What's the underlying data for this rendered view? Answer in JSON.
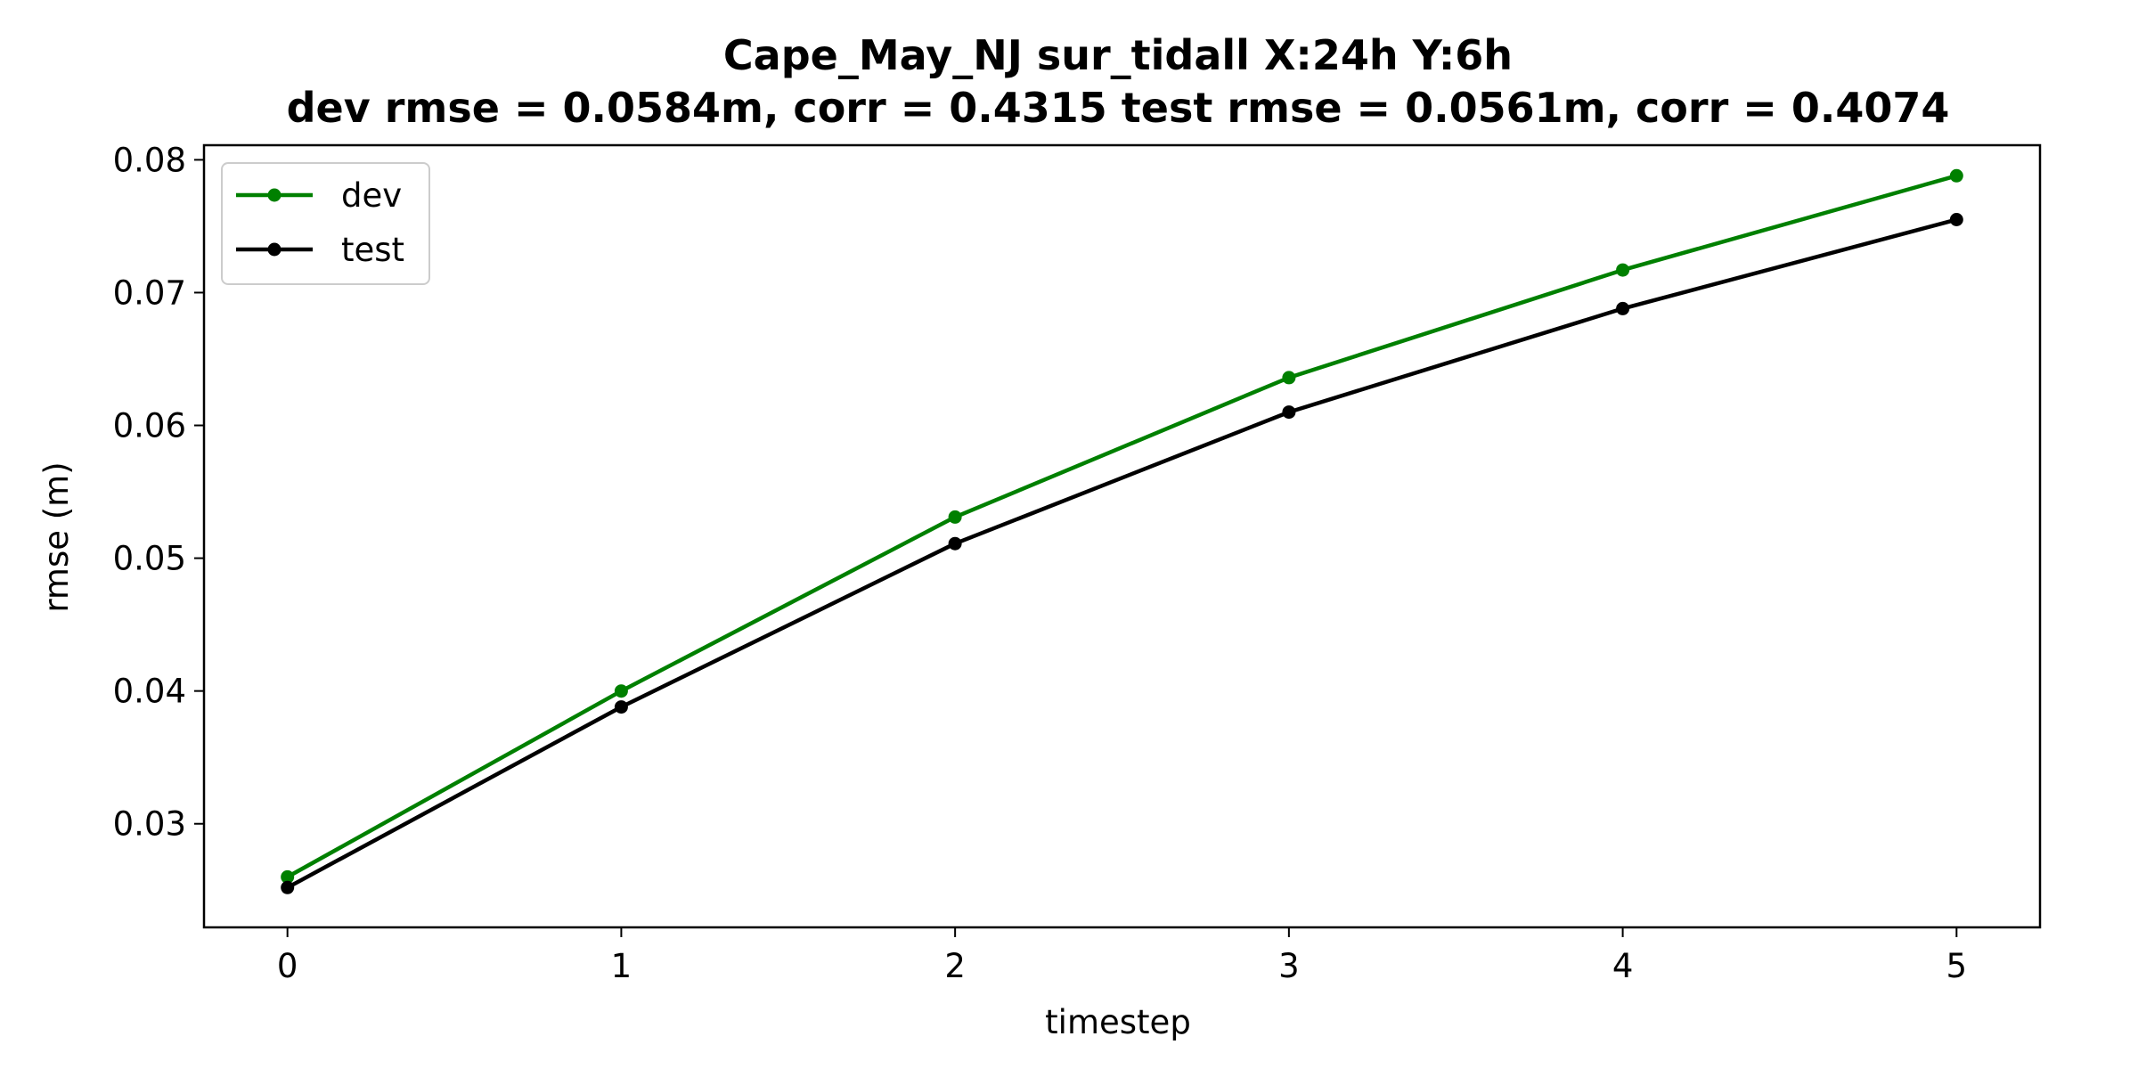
{
  "chart_data": {
    "type": "line",
    "title": "Cape_May_NJ   sur_tidall   X:24h   Y:6h",
    "subtitle": "dev rmse = 0.0584m, corr = 0.4315   test rmse = 0.0561m, corr = 0.4074",
    "xlabel": "timestep",
    "ylabel": "rmse (m)",
    "x": [
      0,
      1,
      2,
      3,
      4,
      5
    ],
    "x_ticks": [
      "0",
      "1",
      "2",
      "3",
      "4",
      "5"
    ],
    "y_ticks": [
      "0.03",
      "0.04",
      "0.05",
      "0.06",
      "0.07",
      "0.08"
    ],
    "xlim": [
      -0.25,
      5.25
    ],
    "ylim": [
      0.0222,
      0.0811
    ],
    "grid": false,
    "legend_position": "upper-left",
    "series": [
      {
        "name": "dev",
        "color": "#008000",
        "marker": "circle",
        "values": [
          0.026,
          0.04,
          0.0531,
          0.0636,
          0.0717,
          0.0788
        ]
      },
      {
        "name": "test",
        "color": "#000000",
        "marker": "circle",
        "values": [
          0.0252,
          0.0388,
          0.0511,
          0.061,
          0.0688,
          0.0755
        ]
      }
    ]
  }
}
